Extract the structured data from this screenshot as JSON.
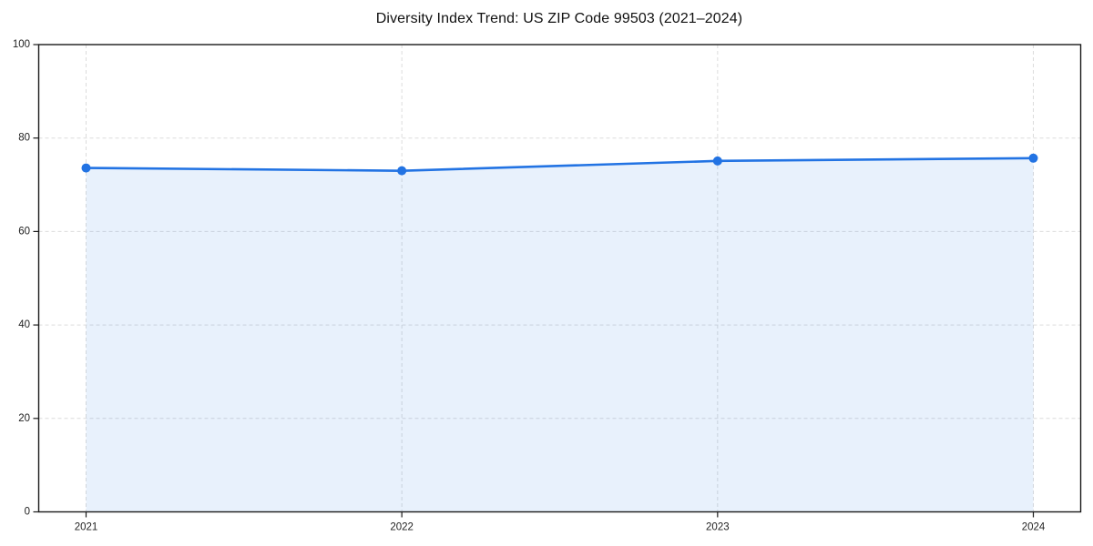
{
  "chart_data": {
    "type": "area",
    "title": "Diversity Index Trend: US ZIP Code 99503 (2021–2024)",
    "x": [
      2021,
      2022,
      2023,
      2024
    ],
    "xtick_labels": [
      "2021",
      "2022",
      "2023",
      "2024"
    ],
    "series": [
      {
        "name": "Diversity Index",
        "values": [
          73.6,
          73.0,
          75.1,
          75.7
        ]
      }
    ],
    "ylim": [
      0,
      100
    ],
    "xlim": [
      2020.85,
      2024.15
    ],
    "yticks": [
      0,
      20,
      40,
      60,
      80,
      100
    ],
    "ytick_labels": [
      "0",
      "20",
      "40",
      "60",
      "80",
      "100"
    ],
    "grid": "dashed",
    "legend_position": "none",
    "colors": {
      "line": "#2273e3",
      "marker": "#2273e3",
      "fill": "#2273e3",
      "fill_opacity": 0.1,
      "grid": "#dcdcdc",
      "spine": "#1a1a1a",
      "tick_label": "#222222",
      "title": "#111111",
      "background": "#ffffff"
    }
  }
}
